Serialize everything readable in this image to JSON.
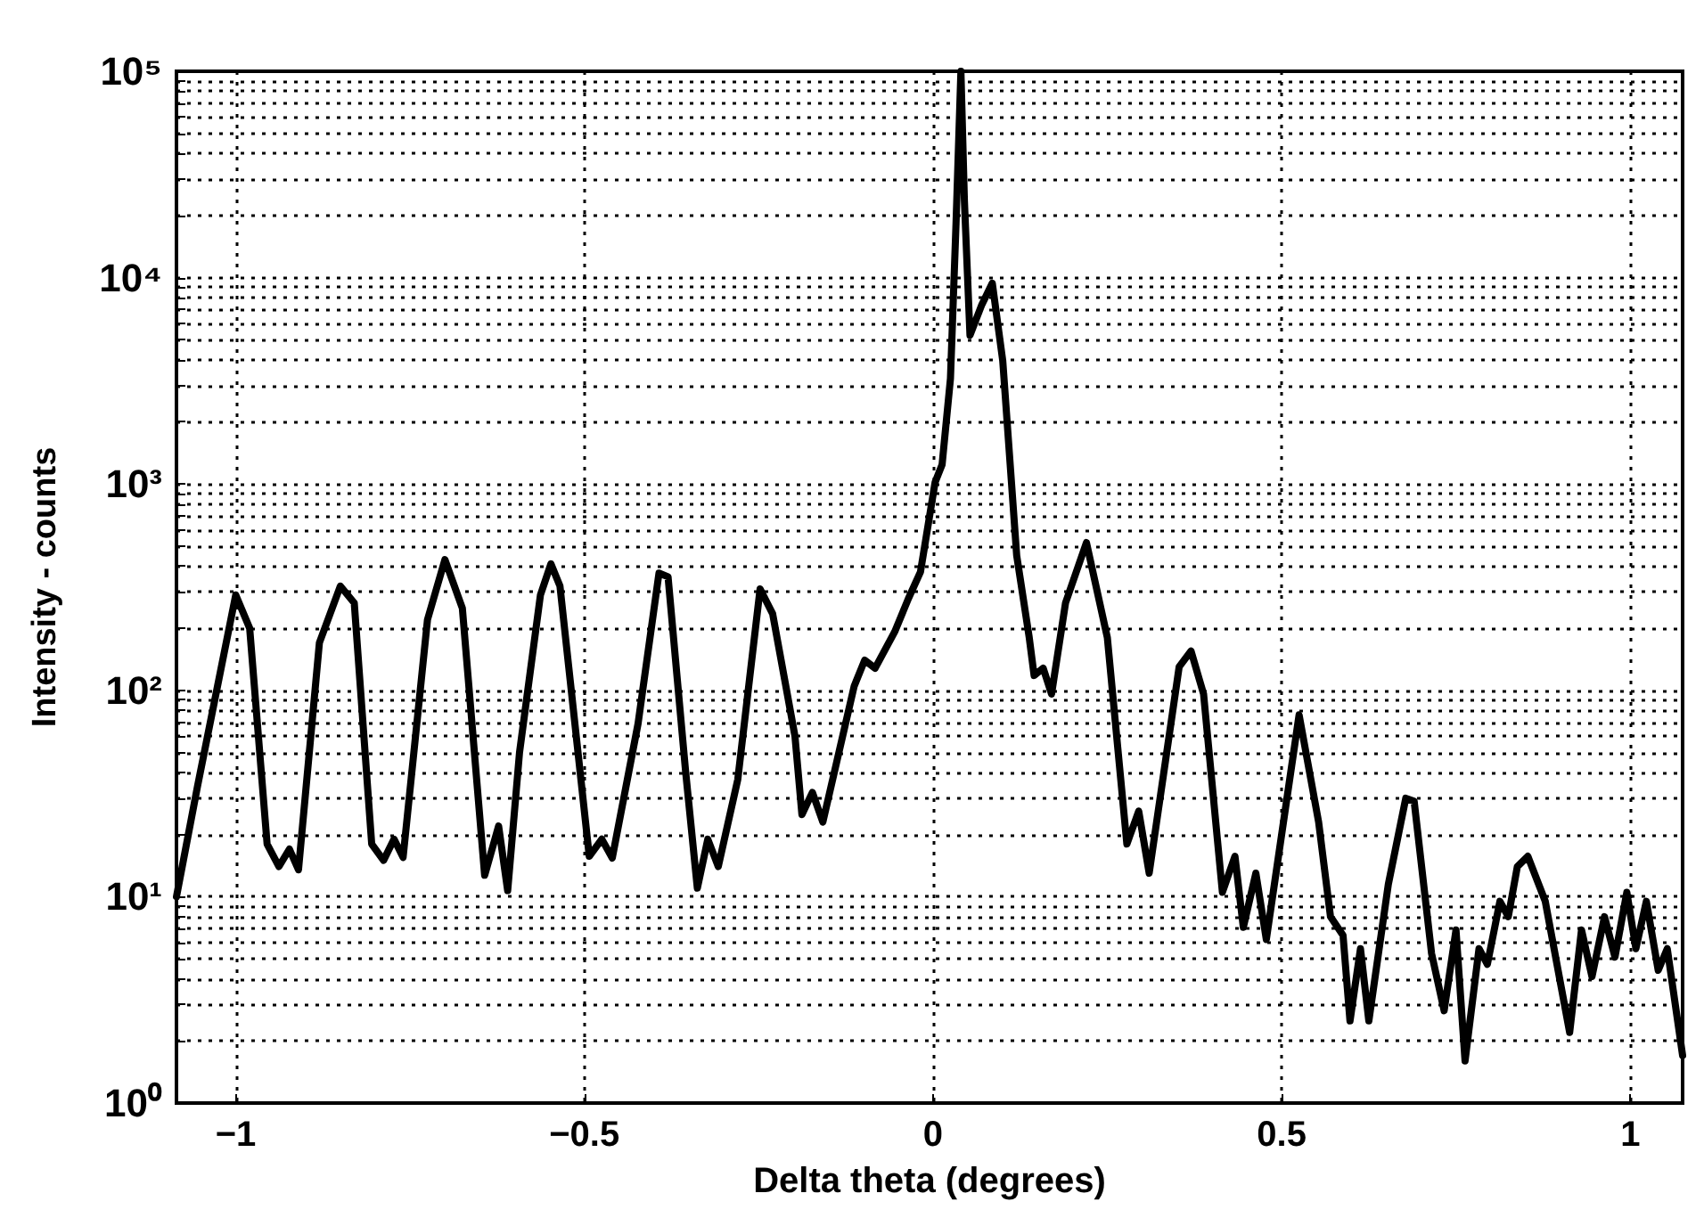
{
  "chart_data": {
    "type": "line",
    "xlabel": "Delta theta (degrees)",
    "ylabel": "Intensity - counts",
    "log": "y",
    "grid": true,
    "marker": "none",
    "line_style": "solid",
    "xlim": [
      -1.085,
      1.075
    ],
    "xticks": [
      {
        "value": -1,
        "label": "−1"
      },
      {
        "value": -0.5,
        "label": "−0.5"
      },
      0,
      0.5,
      1
    ],
    "ylim": [
      1,
      100000
    ],
    "yticks": [
      {
        "value": 1,
        "label": "10⁰"
      },
      {
        "value": 10,
        "label": "10¹"
      },
      {
        "value": 100,
        "label": "10²"
      },
      {
        "value": 1000,
        "label": "10³"
      },
      {
        "value": 10000,
        "label": "10⁴"
      },
      {
        "value": 100000,
        "label": "10⁵"
      }
    ],
    "series": [
      {
        "color": "#000000",
        "x": [
          -1.085,
          -1.055,
          -1.0,
          -0.98,
          -0.955,
          -0.938,
          -0.923,
          -0.91,
          -0.88,
          -0.85,
          -0.83,
          -0.805,
          -0.788,
          -0.773,
          -0.76,
          -0.725,
          -0.7,
          -0.675,
          -0.643,
          -0.623,
          -0.61,
          -0.593,
          -0.563,
          -0.548,
          -0.535,
          -0.493,
          -0.475,
          -0.46,
          -0.423,
          -0.393,
          -0.38,
          -0.355,
          -0.338,
          -0.323,
          -0.308,
          -0.28,
          -0.248,
          -0.23,
          -0.198,
          -0.188,
          -0.173,
          -0.158,
          -0.113,
          -0.098,
          -0.083,
          -0.055,
          -0.035,
          -0.018,
          0.003,
          0.013,
          0.025,
          0.033,
          0.04,
          0.045,
          0.053,
          0.07,
          0.085,
          0.1,
          0.12,
          0.138,
          0.145,
          0.158,
          0.17,
          0.19,
          0.22,
          0.25,
          0.278,
          0.295,
          0.31,
          0.353,
          0.37,
          0.388,
          0.415,
          0.433,
          0.445,
          0.463,
          0.478,
          0.525,
          0.553,
          0.57,
          0.588,
          0.598,
          0.613,
          0.625,
          0.653,
          0.678,
          0.69,
          0.715,
          0.733,
          0.75,
          0.763,
          0.783,
          0.795,
          0.813,
          0.825,
          0.838,
          0.853,
          0.878,
          0.913,
          0.93,
          0.945,
          0.963,
          0.978,
          0.995,
          1.008,
          1.023,
          1.04,
          1.053,
          1.075
        ],
        "values": [
          10,
          34,
          290,
          200,
          18,
          14,
          17,
          13.5,
          170,
          320,
          265,
          18,
          15,
          19,
          15.5,
          220,
          430,
          250,
          12.7,
          22,
          10.7,
          50,
          290,
          410,
          320,
          15.7,
          19,
          15.4,
          69,
          370,
          355,
          41,
          11,
          19,
          14,
          37,
          310,
          235,
          60,
          25,
          32,
          23,
          105,
          140,
          128,
          192,
          280,
          375,
          1020,
          1240,
          3240,
          18300,
          100000,
          23600,
          5250,
          7400,
          9400,
          3950,
          450,
          180,
          118,
          128,
          96,
          265,
          520,
          180,
          18,
          26,
          13,
          130,
          155,
          96,
          10.5,
          15.7,
          7.1,
          13,
          6.2,
          76,
          23,
          8,
          6.5,
          2.5,
          5.6,
          2.5,
          11.5,
          30,
          29,
          5.3,
          2.8,
          6.9,
          1.6,
          5.6,
          4.7,
          9.5,
          8,
          14,
          15.7,
          9.5,
          2.2,
          6.9,
          4.1,
          8,
          5.1,
          10.5,
          5.6,
          9.5,
          4.4,
          5.6,
          1.7
        ]
      }
    ]
  }
}
